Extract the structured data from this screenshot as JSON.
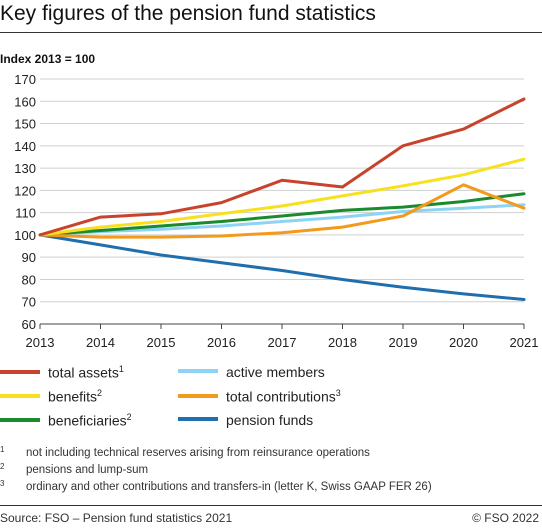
{
  "title": "Key figures of the pension fund statistics",
  "subtitle": "Index 2013 = 100",
  "chart_data": {
    "type": "line",
    "ylabel": "Index 2013 = 100",
    "ylim": [
      60,
      170
    ],
    "yticks": [
      60,
      70,
      80,
      90,
      100,
      110,
      120,
      130,
      140,
      150,
      160,
      170
    ],
    "x": [
      "2013",
      "2014",
      "2015",
      "2016",
      "2017",
      "2018",
      "2019",
      "2020",
      "2021"
    ],
    "grid": "horizontal",
    "legend_position": "bottom",
    "series": [
      {
        "name": "total assets",
        "footnote": "1",
        "color": "#c8432b",
        "values": [
          100,
          108,
          109.5,
          114.5,
          124.5,
          121.5,
          140,
          147.5,
          161
        ]
      },
      {
        "name": "benefits",
        "footnote": "2",
        "color": "#f7e11e",
        "values": [
          100,
          103.5,
          106,
          109.5,
          113,
          117.5,
          122,
          127,
          134
        ]
      },
      {
        "name": "beneficiaries",
        "footnote": "2",
        "color": "#1a8a2e",
        "values": [
          100,
          102,
          104,
          106,
          108.5,
          111,
          112.5,
          115,
          118.5
        ]
      },
      {
        "name": "active members",
        "footnote": "",
        "color": "#8cd3f5",
        "values": [
          100,
          101.5,
          102.5,
          104,
          106,
          108,
          110.5,
          112,
          113.5
        ]
      },
      {
        "name": "total contributions",
        "footnote": "3",
        "color": "#f39a1c",
        "values": [
          100,
          99,
          99,
          99.5,
          101,
          103.5,
          108.5,
          122.5,
          112
        ]
      },
      {
        "name": "pension funds",
        "footnote": "",
        "color": "#1f6eae",
        "values": [
          100,
          95.5,
          91,
          87.5,
          84,
          80,
          76.5,
          73.5,
          71
        ]
      }
    ]
  },
  "footnotes": [
    {
      "mark": "1",
      "text": "not including technical reserves arising from reinsurance operations"
    },
    {
      "mark": "2",
      "text": "pensions and lump-sum"
    },
    {
      "mark": "3",
      "text": "ordinary and other contributions and transfers-in (letter K, Swiss GAAP FER 26)"
    }
  ],
  "source": "Source: FSO – Pension fund statistics 2021",
  "copyright": "© FSO 2022"
}
